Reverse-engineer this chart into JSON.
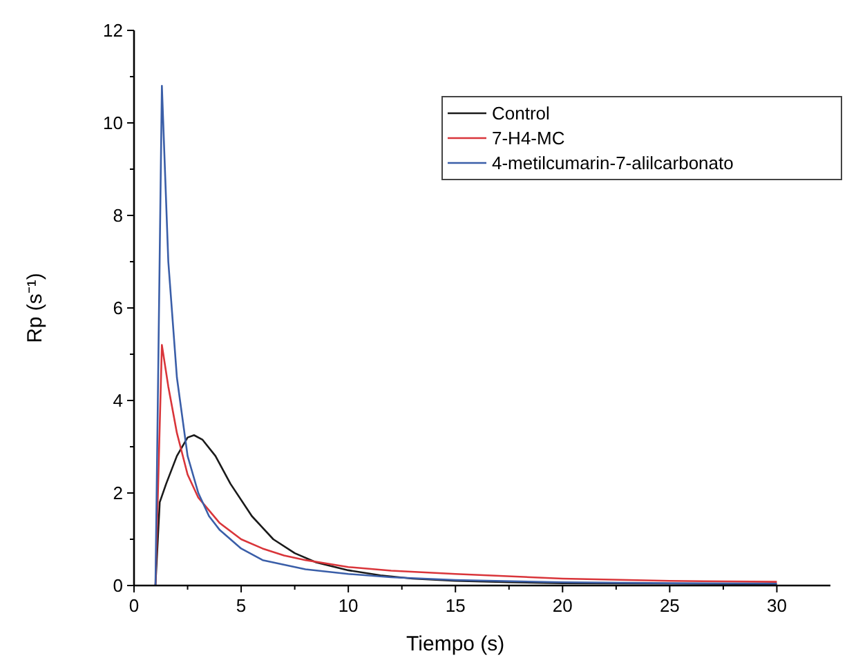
{
  "chart_data": {
    "type": "line",
    "xlabel": "Tiempo (s)",
    "ylabel": "Rp (s⁻¹)",
    "xlim": [
      0,
      32.5
    ],
    "xticks": [
      0,
      {
        "value": 2.5,
        "label": null
      },
      5,
      {
        "value": 7.5,
        "label": null
      },
      10,
      {
        "value": 12.5,
        "label": null
      },
      15,
      {
        "value": 17.5,
        "label": null
      },
      20,
      {
        "value": 22.5,
        "label": null
      },
      25,
      {
        "value": 27.5,
        "label": null
      },
      30
    ],
    "ylim": [
      0,
      12
    ],
    "yticks": [
      0,
      {
        "value": 1,
        "label": null
      },
      2,
      {
        "value": 3,
        "label": null
      },
      4,
      {
        "value": 5,
        "label": null
      },
      6,
      {
        "value": 7,
        "label": null
      },
      8,
      {
        "value": 9,
        "label": null
      },
      10,
      {
        "value": 11,
        "label": null
      },
      12
    ],
    "grid": false,
    "legend": "top right",
    "marker": "none",
    "line_style": "solid",
    "series": [
      {
        "name": "Control",
        "color": "#1a1a1a",
        "x": [
          1,
          1.2,
          1.5,
          2,
          2.5,
          2.8,
          3.2,
          3.8,
          4.5,
          5.5,
          6.5,
          7.5,
          8.5,
          10,
          11.5,
          13,
          15,
          17.5,
          20,
          25,
          30
        ],
        "values": [
          0,
          1.8,
          2.2,
          2.8,
          3.2,
          3.25,
          3.15,
          2.8,
          2.2,
          1.5,
          1.0,
          0.7,
          0.5,
          0.33,
          0.22,
          0.15,
          0.1,
          0.07,
          0.05,
          0.04,
          0.03
        ]
      },
      {
        "name": "7-H4-MC",
        "color": "#d9353a",
        "x": [
          1,
          1.3,
          1.6,
          2,
          2.5,
          3,
          4,
          5,
          6,
          7,
          8,
          10,
          12,
          15,
          20,
          25,
          30
        ],
        "values": [
          0,
          5.2,
          4.3,
          3.3,
          2.4,
          1.9,
          1.35,
          1.0,
          0.8,
          0.65,
          0.55,
          0.4,
          0.32,
          0.25,
          0.15,
          0.1,
          0.08
        ]
      },
      {
        "name": "4-metilcumarin-7-alilcarbonato",
        "color": "#3a5ea8",
        "x": [
          1,
          1.3,
          1.6,
          2,
          2.5,
          3,
          3.5,
          4,
          5,
          6,
          8,
          10,
          12,
          15,
          20,
          25,
          30
        ],
        "values": [
          0,
          10.8,
          7,
          4.5,
          2.8,
          2.0,
          1.5,
          1.2,
          0.8,
          0.55,
          0.35,
          0.25,
          0.18,
          0.12,
          0.07,
          0.05,
          0.04
        ]
      }
    ]
  }
}
